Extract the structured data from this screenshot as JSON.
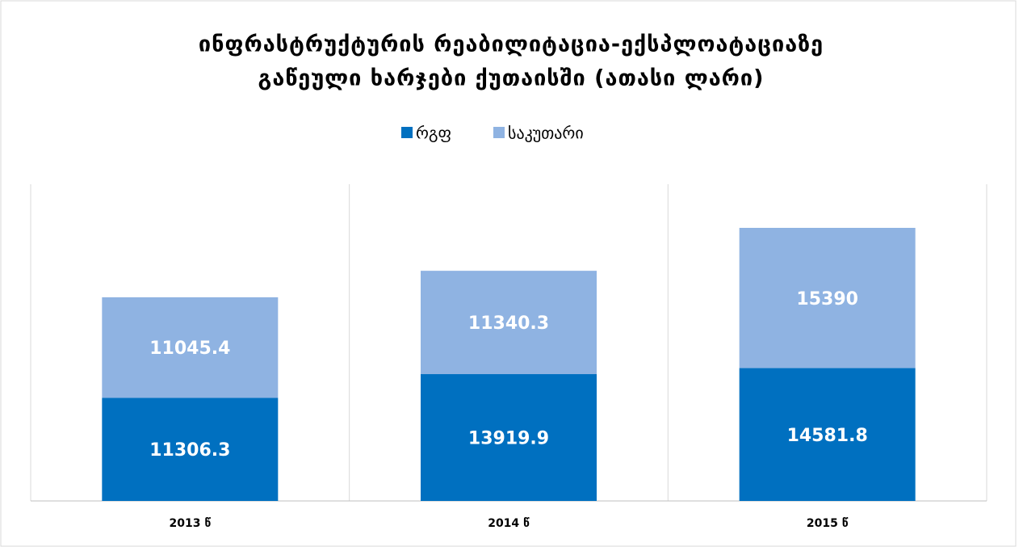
{
  "chart_data": {
    "type": "stacked_bar",
    "title": [
      "ინფრასტრუქტურის რეაბილიტაცია-ექსპლოატაციაზე",
      "გაწეული ხარჯები ქუთაისში (ათასი ლარი)"
    ],
    "categories": [
      "2013 წ",
      "2014 წ",
      "2015 წ"
    ],
    "series": [
      {
        "name": "რგფ",
        "color": "#0070c0",
        "values": [
          11306.3,
          13919.9,
          14581.8
        ]
      },
      {
        "name": "საკუთარი",
        "color": "#8fb3e2",
        "values": [
          11045.4,
          11340.3,
          15390
        ]
      }
    ],
    "legend": "top",
    "grid": true
  }
}
